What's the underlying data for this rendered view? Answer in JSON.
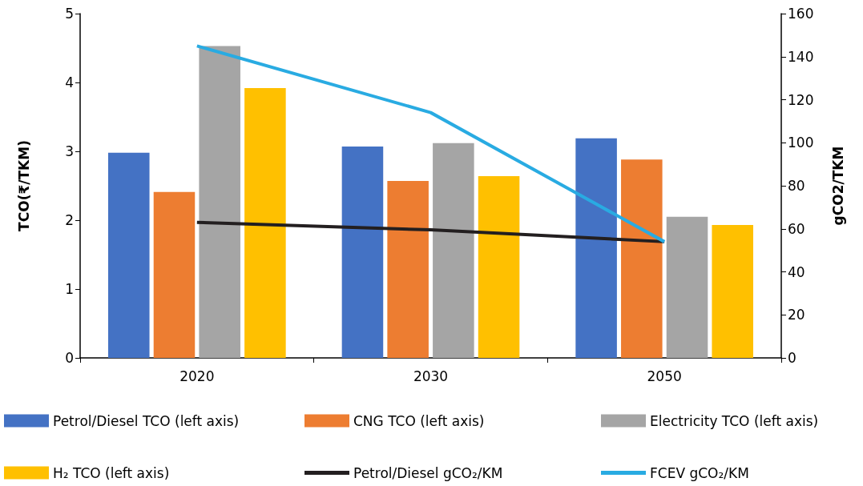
{
  "chart_data": {
    "type": "bar",
    "ylabel": "TCO(₹/TKM)",
    "y2label": "gCO2/TKM",
    "categories": [
      "2020",
      "2030",
      "2050"
    ],
    "ylim": [
      0,
      5
    ],
    "yticks": [
      0,
      1,
      2,
      3,
      4,
      5
    ],
    "y2lim": [
      0,
      160
    ],
    "y2ticks": [
      0,
      20,
      40,
      60,
      80,
      100,
      120,
      140,
      160
    ],
    "grid": false,
    "legend": "bottom",
    "series": [
      {
        "name": "Petrol/Diesel TCO (left axis)",
        "color": "#4472c4",
        "values": [
          2.98,
          3.07,
          3.19
        ]
      },
      {
        "name": "CNG TCO (left axis)",
        "color": "#ed7d31",
        "values": [
          2.41,
          2.57,
          2.88
        ]
      },
      {
        "name": "Electricity TCO (left axis)",
        "color": "#a5a5a5",
        "values": [
          4.53,
          3.12,
          2.05
        ]
      },
      {
        "name": "H₂ TCO (left axis)",
        "color": "#ffc000",
        "values": [
          3.92,
          2.64,
          1.93
        ]
      },
      {
        "name": "Petrol/Diesel gCO₂/KM",
        "type": "line",
        "axis": "y2",
        "color": "#231f20",
        "values": [
          63,
          59.5,
          54
        ]
      },
      {
        "name": "FCEV gCO₂/KM",
        "type": "line",
        "axis": "y2",
        "color": "#29abe2",
        "values": [
          145,
          114,
          54
        ]
      }
    ]
  }
}
